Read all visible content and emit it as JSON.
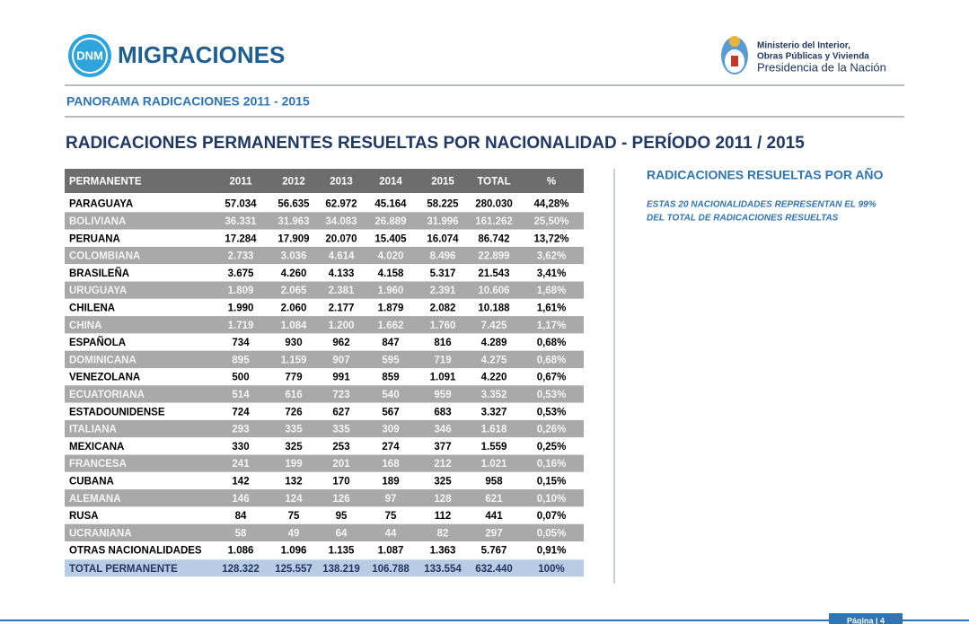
{
  "logo": {
    "badge": "DNM",
    "name": "MIGRACIONES"
  },
  "ministry": [
    "Ministerio del Interior,",
    "Obras Públicas y Vivienda",
    "Presidencia de la Nación"
  ],
  "section": "PANORAMA RADICACIONES 2011 - 2015",
  "title": "RADICACIONES PERMANENTES RESUELTAS POR NACIONALIDAD - PERÍODO 2011 / 2015",
  "table": {
    "header": [
      "PERMANENTE",
      "2011",
      "2012",
      "2013",
      "2014",
      "2015",
      "TOTAL",
      "%"
    ],
    "rows": [
      [
        "PARAGUAYA",
        "57.034",
        "56.635",
        "62.972",
        "45.164",
        "58.225",
        "280.030",
        "44,28%"
      ],
      [
        "BOLIVIANA",
        "36.331",
        "31.963",
        "34.083",
        "26.889",
        "31.996",
        "161.262",
        "25,50%"
      ],
      [
        "PERUANA",
        "17.284",
        "17.909",
        "20.070",
        "15.405",
        "16.074",
        "86.742",
        "13,72%"
      ],
      [
        "COLOMBIANA",
        "2.733",
        "3.036",
        "4.614",
        "4.020",
        "8.496",
        "22.899",
        "3,62%"
      ],
      [
        "BRASILEÑA",
        "3.675",
        "4.260",
        "4.133",
        "4.158",
        "5.317",
        "21.543",
        "3,41%"
      ],
      [
        "URUGUAYA",
        "1.809",
        "2.065",
        "2.381",
        "1.960",
        "2.391",
        "10.606",
        "1,68%"
      ],
      [
        "CHILENA",
        "1.990",
        "2.060",
        "2.177",
        "1.879",
        "2.082",
        "10.188",
        "1,61%"
      ],
      [
        "CHINA",
        "1.719",
        "1.084",
        "1.200",
        "1.662",
        "1.760",
        "7.425",
        "1,17%"
      ],
      [
        "ESPAÑOLA",
        "734",
        "930",
        "962",
        "847",
        "816",
        "4.289",
        "0,68%"
      ],
      [
        "DOMINICANA",
        "895",
        "1.159",
        "907",
        "595",
        "719",
        "4.275",
        "0,68%"
      ],
      [
        "VENEZOLANA",
        "500",
        "779",
        "991",
        "859",
        "1.091",
        "4.220",
        "0,67%"
      ],
      [
        "ECUATORIANA",
        "514",
        "616",
        "723",
        "540",
        "959",
        "3.352",
        "0,53%"
      ],
      [
        "ESTADOUNIDENSE",
        "724",
        "726",
        "627",
        "567",
        "683",
        "3.327",
        "0,53%"
      ],
      [
        "ITALIANA",
        "293",
        "335",
        "335",
        "309",
        "346",
        "1.618",
        "0,26%"
      ],
      [
        "MEXICANA",
        "330",
        "325",
        "253",
        "274",
        "377",
        "1.559",
        "0,25%"
      ],
      [
        "FRANCESA",
        "241",
        "199",
        "201",
        "168",
        "212",
        "1.021",
        "0,16%"
      ],
      [
        "CUBANA",
        "142",
        "132",
        "170",
        "189",
        "325",
        "958",
        "0,15%"
      ],
      [
        "ALEMANA",
        "146",
        "124",
        "126",
        "97",
        "128",
        "621",
        "0,10%"
      ],
      [
        "RUSA",
        "84",
        "75",
        "95",
        "75",
        "112",
        "441",
        "0,07%"
      ],
      [
        "UCRANIANA",
        "58",
        "49",
        "64",
        "44",
        "82",
        "297",
        "0,05%"
      ],
      [
        "OTRAS NACIONALIDADES",
        "1.086",
        "1.096",
        "1.135",
        "1.087",
        "1.363",
        "5.767",
        "0,91%"
      ]
    ],
    "total": [
      "TOTAL PERMANENTE",
      "128.322",
      "125.557",
      "138.219",
      "106.788",
      "133.554",
      "632.440",
      "100%"
    ]
  },
  "sidebar": {
    "heading": "RADICACIONES RESUELTAS POR AÑO",
    "note": [
      "ESTAS 20 NACIONALIDADES REPRESENTAN EL 99%",
      "DEL TOTAL DE RADICACIONES RESUELTAS"
    ]
  },
  "footer": "Página | 4"
}
